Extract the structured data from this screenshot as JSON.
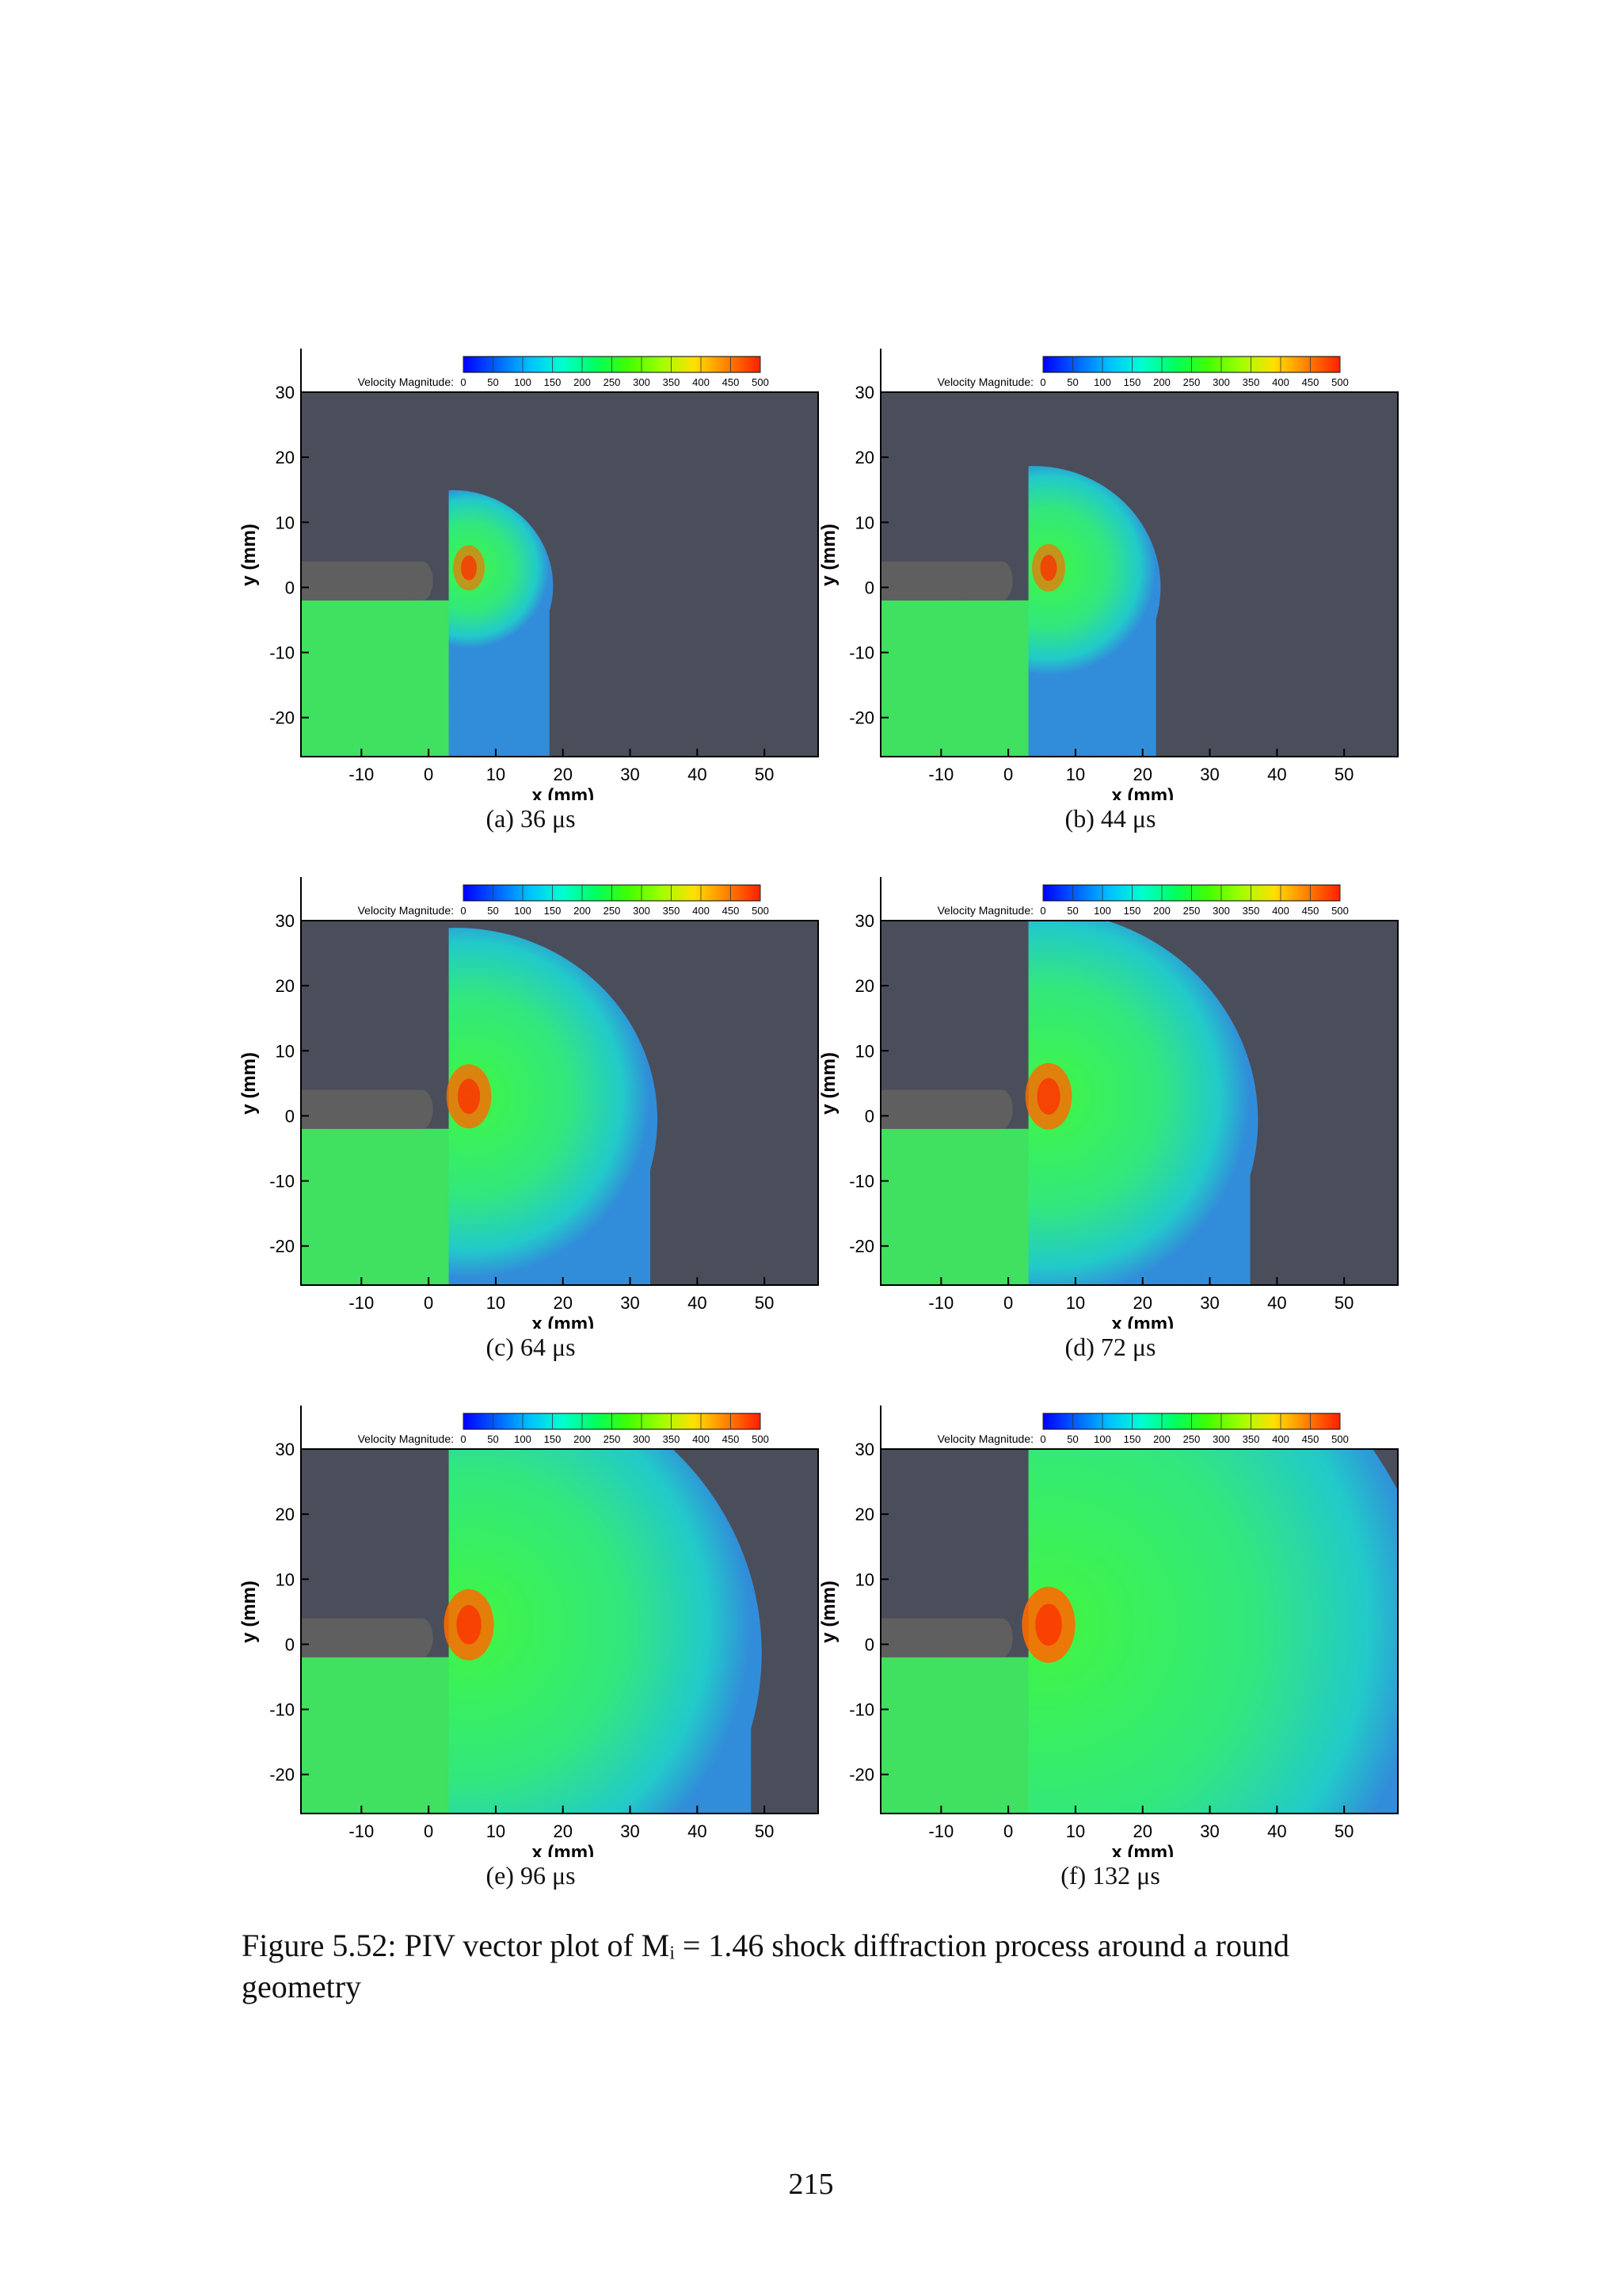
{
  "figure": {
    "caption": "Figure 5.52: PIV vector plot of Mᵢ = 1.46 shock diffraction process around a round geometry",
    "page_number": "215"
  },
  "panels": [
    {
      "label": "(a)",
      "time": "36",
      "unit": "μs",
      "front_mm": 18,
      "intensity": 0.35
    },
    {
      "label": "(b)",
      "time": "44",
      "unit": "μs",
      "front_mm": 22,
      "intensity": 0.4
    },
    {
      "label": "(c)",
      "time": "64",
      "unit": "μs",
      "front_mm": 33,
      "intensity": 0.75
    },
    {
      "label": "(d)",
      "time": "72",
      "unit": "μs",
      "front_mm": 36,
      "intensity": 0.8
    },
    {
      "label": "(e)",
      "time": "96",
      "unit": "μs",
      "front_mm": 48,
      "intensity": 0.9
    },
    {
      "label": "(f)",
      "time": "132",
      "unit": "μs",
      "front_mm": 62,
      "intensity": 1.0
    }
  ],
  "axes": {
    "xlabel": "x (mm)",
    "ylabel": "y (mm)",
    "xticks": [
      "-10",
      "0",
      "10",
      "20",
      "30",
      "40",
      "50"
    ],
    "yticks": [
      "30",
      "20",
      "10",
      "0",
      "-10",
      "-20"
    ]
  },
  "colorbar": {
    "label": "Velocity Magnitude:",
    "ticks": [
      "0",
      "50",
      "100",
      "150",
      "200",
      "250",
      "300",
      "350",
      "400",
      "450",
      "500"
    ]
  },
  "colors": {
    "background": "#4a4e5a",
    "wall": "#5f5f5f",
    "cmap": [
      "#0000ff",
      "#0060ff",
      "#00c0ff",
      "#00ffd0",
      "#00ff60",
      "#40ff00",
      "#a0ff00",
      "#ffe000",
      "#ff8000",
      "#ff2000"
    ]
  }
}
